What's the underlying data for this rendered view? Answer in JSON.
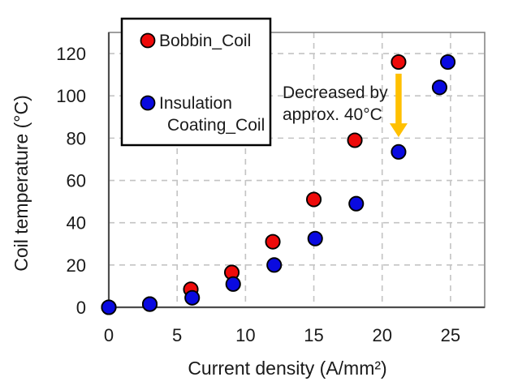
{
  "chart_data": {
    "type": "scatter",
    "title": "",
    "xlabel": "Current density (A/mm²)",
    "ylabel": "Coil temperature (°C)",
    "xlim": [
      0,
      27.5
    ],
    "ylim": [
      0,
      130
    ],
    "xticks": [
      0,
      5,
      10,
      15,
      20,
      25
    ],
    "yticks": [
      0,
      20,
      40,
      60,
      80,
      100,
      120
    ],
    "grid": "dashed",
    "gridline_color": "#c3c3c3",
    "axis_color": "#4d4d4d",
    "plot_border_color": "#7f7f7f",
    "marker_outline_color": "#000000",
    "legend_position": "top-left-overlay-box",
    "series": [
      {
        "name": "Bobbin_Coil",
        "color": "#ee0a0a",
        "marker": "circle",
        "points": [
          [
            0,
            0
          ],
          [
            3,
            1.5
          ],
          [
            6,
            8.5
          ],
          [
            9,
            16.5
          ],
          [
            12,
            31
          ],
          [
            15,
            51
          ],
          [
            18,
            79
          ],
          [
            21.2,
            116
          ]
        ]
      },
      {
        "name": "Insulation Coating_Coil",
        "color": "#0a0ae0",
        "marker": "circle",
        "points": [
          [
            0,
            0
          ],
          [
            3,
            1.5
          ],
          [
            6.1,
            4.5
          ],
          [
            9.1,
            11
          ],
          [
            12.1,
            20
          ],
          [
            15.1,
            32.5
          ],
          [
            18.1,
            49
          ],
          [
            21.2,
            73.5
          ],
          [
            24.2,
            104
          ],
          [
            24.8,
            116
          ]
        ]
      }
    ],
    "annotation": {
      "line1": "Decreased by",
      "line2": "approx. 40°C",
      "arrow_color": "#ffc000",
      "arrow_x": 21.2,
      "arrow_y_from": 110.5,
      "arrow_y_to": 80.5
    }
  },
  "legend": {
    "item1_label": "Bobbin_Coil",
    "item2_label_line1": "Insulation",
    "item2_label_line2": "Coating_Coil"
  }
}
